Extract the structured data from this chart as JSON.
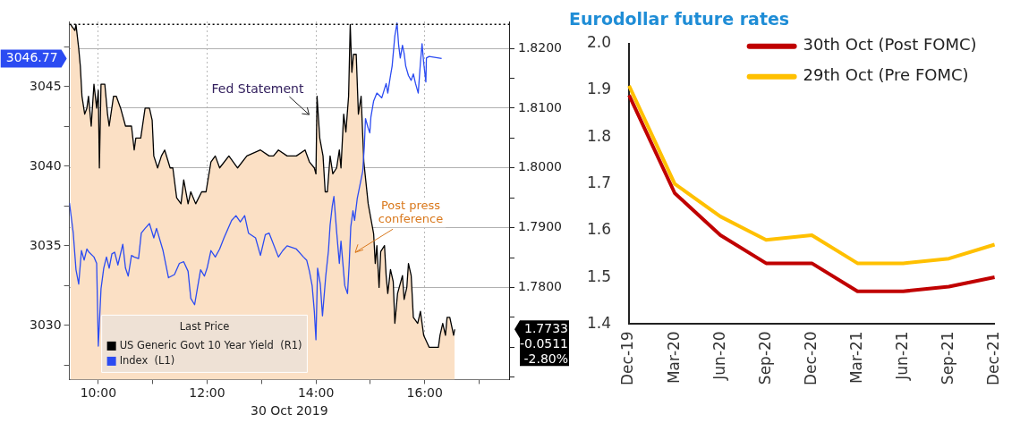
{
  "chart_data": [
    {
      "type": "line",
      "xlabel": "30 Oct 2019",
      "legend": "bottom left",
      "legend_title": "Last Price",
      "grid": true,
      "marker": "none",
      "xlim": [
        9.47,
        17.55
      ],
      "xticks": [
        {
          "value": 10,
          "label": "10:00"
        },
        {
          "value": 11,
          "label": null
        },
        {
          "value": 12,
          "label": "12:00"
        },
        {
          "value": 13,
          "label": null
        },
        {
          "value": 14,
          "label": "14:00"
        },
        {
          "value": 15,
          "label": null
        },
        {
          "value": 16,
          "label": "16:00"
        },
        {
          "value": 17,
          "label": null
        }
      ],
      "ylim": [
        3026.6,
        3049.1
      ],
      "yticks": [
        {
          "value": 3027.5,
          "label": null
        },
        3030,
        {
          "value": 3032.5,
          "label": null
        },
        3035,
        {
          "value": 3037.5,
          "label": null
        },
        3040,
        {
          "value": 3042.5,
          "label": null
        },
        3045,
        {
          "value": 3047.5,
          "label": null
        }
      ],
      "y2lim": [
        1.7646,
        1.8245
      ],
      "y2ticks": [
        {
          "value": 1.765,
          "label": null
        },
        {
          "value": 1.77,
          "label": null
        },
        {
          "value": 1.775,
          "label": null
        },
        {
          "value": 1.78,
          "label": "1.7800"
        },
        {
          "value": 1.785,
          "label": null
        },
        {
          "value": 1.79,
          "label": "1.7900"
        },
        {
          "value": 1.795,
          "label": null
        },
        {
          "value": 1.8,
          "label": "1.8000"
        },
        {
          "value": 1.805,
          "label": null
        },
        {
          "value": 1.81,
          "label": "1.8100"
        },
        {
          "value": 1.815,
          "label": null
        },
        {
          "value": 1.82,
          "label": "1.8200"
        }
      ],
      "ref_lines": [
        {
          "axis": "y2",
          "value": 1.824,
          "label": null,
          "color": "#000000",
          "line_style": "dotted"
        }
      ],
      "annotations": [
        "Fed Statement",
        "Post press conference",
        "3046.77",
        "1.7733",
        "-0.0511",
        "-2.80%"
      ],
      "series": [
        {
          "name": "US Generic Govt 10 Year Yield  (R1)",
          "type": "area",
          "axis": "y2",
          "color": "#000000",
          "x": [
            9.49,
            9.57,
            9.59,
            9.64,
            9.67,
            9.7,
            9.75,
            9.79,
            9.82,
            9.87,
            9.92,
            9.97,
            10.0,
            10.02,
            10.05,
            10.12,
            10.17,
            10.2,
            10.28,
            10.33,
            10.41,
            10.5,
            10.61,
            10.66,
            10.69,
            10.78,
            10.86,
            10.94,
            10.99,
            11.02,
            11.09,
            11.16,
            11.22,
            11.32,
            11.37,
            11.44,
            11.52,
            11.57,
            11.65,
            11.7,
            11.79,
            11.9,
            11.98,
            12.07,
            12.15,
            12.23,
            12.4,
            12.56,
            12.73,
            12.98,
            13.14,
            13.22,
            13.31,
            13.47,
            13.64,
            13.8,
            13.88,
            13.97,
            14.0,
            14.02,
            14.07,
            14.13,
            14.17,
            14.21,
            14.26,
            14.31,
            14.38,
            14.43,
            14.46,
            14.51,
            14.55,
            14.6,
            14.63,
            14.66,
            14.69,
            14.74,
            14.78,
            14.83,
            14.88,
            14.96,
            15.06,
            15.09,
            15.12,
            15.16,
            15.19,
            15.26,
            15.29,
            15.32,
            15.37,
            15.42,
            15.45,
            15.5,
            15.59,
            15.62,
            15.67,
            15.7,
            15.75,
            15.79,
            15.87,
            15.92,
            15.98,
            16.08,
            16.25,
            16.28,
            16.33,
            16.38,
            16.41,
            16.46,
            16.53,
            16.55
          ],
          "values": [
            1.824,
            1.823,
            1.824,
            1.82,
            1.817,
            1.812,
            1.809,
            1.81,
            1.812,
            1.807,
            1.814,
            1.81,
            1.813,
            1.8,
            1.814,
            1.814,
            1.809,
            1.807,
            1.812,
            1.812,
            1.81,
            1.807,
            1.807,
            1.803,
            1.805,
            1.805,
            1.81,
            1.81,
            1.808,
            1.802,
            1.8,
            1.802,
            1.803,
            1.8,
            1.8,
            1.795,
            1.794,
            1.798,
            1.794,
            1.796,
            1.794,
            1.796,
            1.796,
            1.801,
            1.802,
            1.8,
            1.802,
            1.8,
            1.802,
            1.803,
            1.802,
            1.802,
            1.803,
            1.802,
            1.802,
            1.803,
            1.801,
            1.8,
            1.799,
            1.812,
            1.805,
            1.802,
            1.796,
            1.796,
            1.802,
            1.799,
            1.8,
            1.803,
            1.8,
            1.809,
            1.806,
            1.812,
            1.824,
            1.816,
            1.819,
            1.819,
            1.809,
            1.812,
            1.801,
            1.794,
            1.789,
            1.784,
            1.787,
            1.78,
            1.786,
            1.787,
            1.782,
            1.779,
            1.783,
            1.781,
            1.774,
            1.779,
            1.782,
            1.778,
            1.78,
            1.784,
            1.782,
            1.775,
            1.774,
            1.776,
            1.772,
            1.77,
            1.77,
            1.772,
            1.774,
            1.772,
            1.775,
            1.775,
            1.772,
            1.773
          ]
        },
        {
          "name": "Index  (L1)",
          "type": "line",
          "color": "#2b4bf2",
          "x": [
            9.47,
            9.54,
            9.59,
            9.64,
            9.69,
            9.74,
            9.79,
            9.83,
            9.92,
            9.97,
            10.0,
            10.05,
            10.1,
            10.15,
            10.2,
            10.25,
            10.3,
            10.36,
            10.45,
            10.5,
            10.55,
            10.61,
            10.66,
            10.74,
            10.79,
            10.86,
            10.94,
            11.02,
            11.07,
            11.19,
            11.29,
            11.4,
            11.49,
            11.57,
            11.65,
            11.7,
            11.77,
            11.82,
            11.88,
            11.95,
            12.0,
            12.07,
            12.15,
            12.23,
            12.31,
            12.45,
            12.53,
            12.61,
            12.69,
            12.76,
            12.89,
            12.98,
            13.07,
            13.14,
            13.31,
            13.39,
            13.47,
            13.64,
            13.77,
            13.83,
            13.88,
            13.93,
            13.97,
            14.0,
            14.03,
            14.08,
            14.12,
            14.18,
            14.23,
            14.26,
            14.3,
            14.33,
            14.38,
            14.43,
            14.46,
            14.53,
            14.58,
            14.61,
            14.64,
            14.68,
            14.71,
            14.76,
            14.79,
            14.86,
            14.89,
            14.91,
            14.96,
            14.99,
            15.01,
            15.06,
            15.12,
            15.21,
            15.29,
            15.32,
            15.37,
            15.4,
            15.45,
            15.49,
            15.52,
            15.55,
            15.59,
            15.62,
            15.65,
            15.7,
            15.75,
            15.79,
            15.83,
            15.88,
            15.92,
            15.95,
            15.98,
            16.02,
            16.03,
            16.08,
            16.31
          ],
          "values": [
            3037.7,
            3035.8,
            3033.5,
            3032.6,
            3034.7,
            3034.1,
            3034.8,
            3034.6,
            3034.3,
            3033.9,
            3028.7,
            3032.3,
            3033.6,
            3034.3,
            3033.6,
            3034.5,
            3034.6,
            3033.8,
            3035.1,
            3033.6,
            3033.1,
            3034.4,
            3034.3,
            3034.2,
            3035.8,
            3036.1,
            3036.4,
            3035.5,
            3036.1,
            3034.7,
            3033.0,
            3033.2,
            3033.9,
            3034.0,
            3033.4,
            3031.7,
            3031.3,
            3032.3,
            3033.5,
            3033.1,
            3033.6,
            3034.7,
            3034.3,
            3034.8,
            3035.5,
            3036.6,
            3036.9,
            3036.5,
            3036.9,
            3035.8,
            3035.5,
            3034.4,
            3035.7,
            3035.8,
            3034.3,
            3034.7,
            3035.0,
            3034.8,
            3034.3,
            3034.1,
            3033.4,
            3032.5,
            3030.9,
            3029.1,
            3033.6,
            3032.6,
            3030.6,
            3033.1,
            3034.7,
            3036.3,
            3037.5,
            3038.1,
            3035.9,
            3033.9,
            3035.3,
            3032.5,
            3032.0,
            3033.8,
            3036.2,
            3037.2,
            3036.6,
            3038.0,
            3038.5,
            3039.7,
            3041.3,
            3043.0,
            3042.4,
            3042.1,
            3043.1,
            3044.1,
            3044.6,
            3044.3,
            3045.2,
            3044.6,
            3045.7,
            3046.3,
            3048.2,
            3049.0,
            3047.6,
            3046.8,
            3047.6,
            3047.1,
            3046.3,
            3045.7,
            3045.4,
            3045.8,
            3045.2,
            3044.6,
            3046.5,
            3047.7,
            3046.5,
            3045.3,
            3046.8,
            3046.9,
            3046.77
          ]
        }
      ]
    },
    {
      "type": "line",
      "title": "Eurodollar future rates",
      "legend": "top right",
      "marker": "none",
      "categories": [
        "Dec-19",
        "Mar-20",
        "Jun-20",
        "Sep-20",
        "Dec-20",
        "Mar-21",
        "Jun-21",
        "Sep-21",
        "Dec-21"
      ],
      "ylim": [
        1.4,
        2.0
      ],
      "yticks": [
        1.4,
        1.5,
        1.6,
        1.7,
        1.8,
        1.9,
        {
          "value": 2.0,
          "label": "2.0"
        }
      ],
      "series": [
        {
          "name": "30th Oct (Post FOMC)",
          "color": "#c00000",
          "values": [
            1.89,
            1.68,
            1.59,
            1.53,
            1.53,
            1.47,
            1.47,
            1.48,
            1.5
          ]
        },
        {
          "name": "29th Oct (Pre FOMC)",
          "color": "#ffc000",
          "values": [
            1.91,
            1.7,
            1.63,
            1.58,
            1.59,
            1.53,
            1.53,
            1.54,
            1.57
          ]
        }
      ]
    }
  ]
}
